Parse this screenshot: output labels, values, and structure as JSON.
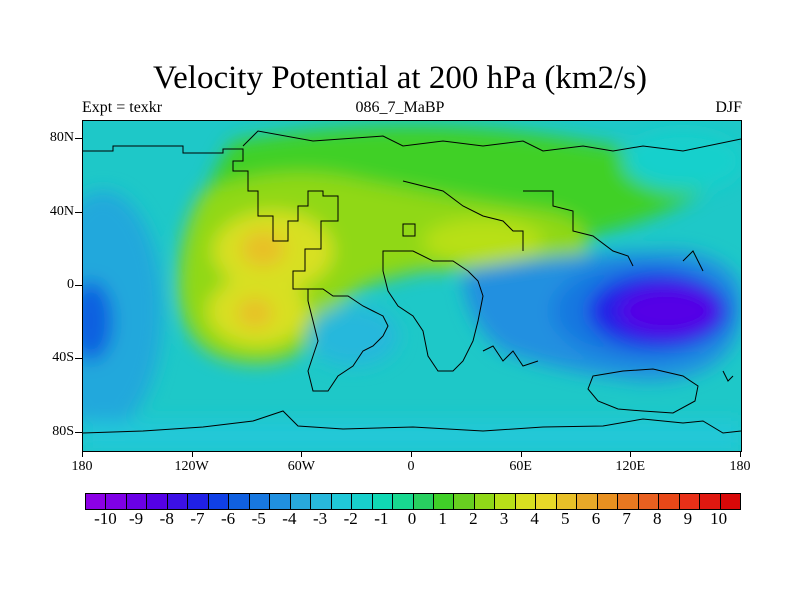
{
  "title": "Velocity Potential at 200 hPa (km2/s)",
  "subtitle_left": "Expt = texkr",
  "subtitle_center": "086_7_MaBP",
  "subtitle_right": "DJF",
  "map": {
    "lon_range": [
      -180,
      180
    ],
    "lat_range": [
      -90,
      90
    ],
    "y_ticks": [
      {
        "lat": 80,
        "label": "80N"
      },
      {
        "lat": 40,
        "label": "40N"
      },
      {
        "lat": 0,
        "label": "0"
      },
      {
        "lat": -40,
        "label": "40S"
      },
      {
        "lat": -80,
        "label": "80S"
      }
    ],
    "x_ticks": [
      {
        "lon": -180,
        "label": "180"
      },
      {
        "lon": -120,
        "label": "120W"
      },
      {
        "lon": -60,
        "label": "60W"
      },
      {
        "lon": 0,
        "label": "0"
      },
      {
        "lon": 60,
        "label": "60E"
      },
      {
        "lon": 120,
        "label": "120E"
      },
      {
        "lon": 180,
        "label": "180"
      }
    ],
    "background_color": "#1ec8c8"
  },
  "colorbar": {
    "colors": [
      "#8c00e6",
      "#7f00e6",
      "#6a00e6",
      "#5400e6",
      "#3c10e6",
      "#2020e6",
      "#1040e6",
      "#1060e0",
      "#1878e0",
      "#2090e0",
      "#28a8dc",
      "#28b8dc",
      "#20c8d8",
      "#18d0cc",
      "#10d8b4",
      "#18d890",
      "#28d060",
      "#40d028",
      "#68d020",
      "#90d818",
      "#b8e018",
      "#d8e020",
      "#e8d828",
      "#e8c028",
      "#e8a828",
      "#e89020",
      "#e87820",
      "#e86020",
      "#e84818",
      "#e83018",
      "#e01810",
      "#d80808"
    ],
    "labels": [
      "-10",
      "-9",
      "-8",
      "-7",
      "-6",
      "-5",
      "-4",
      "-3",
      "-2",
      "-1",
      "0",
      "1",
      "2",
      "3",
      "4",
      "5",
      "6",
      "7",
      "8",
      "9",
      "10"
    ]
  }
}
